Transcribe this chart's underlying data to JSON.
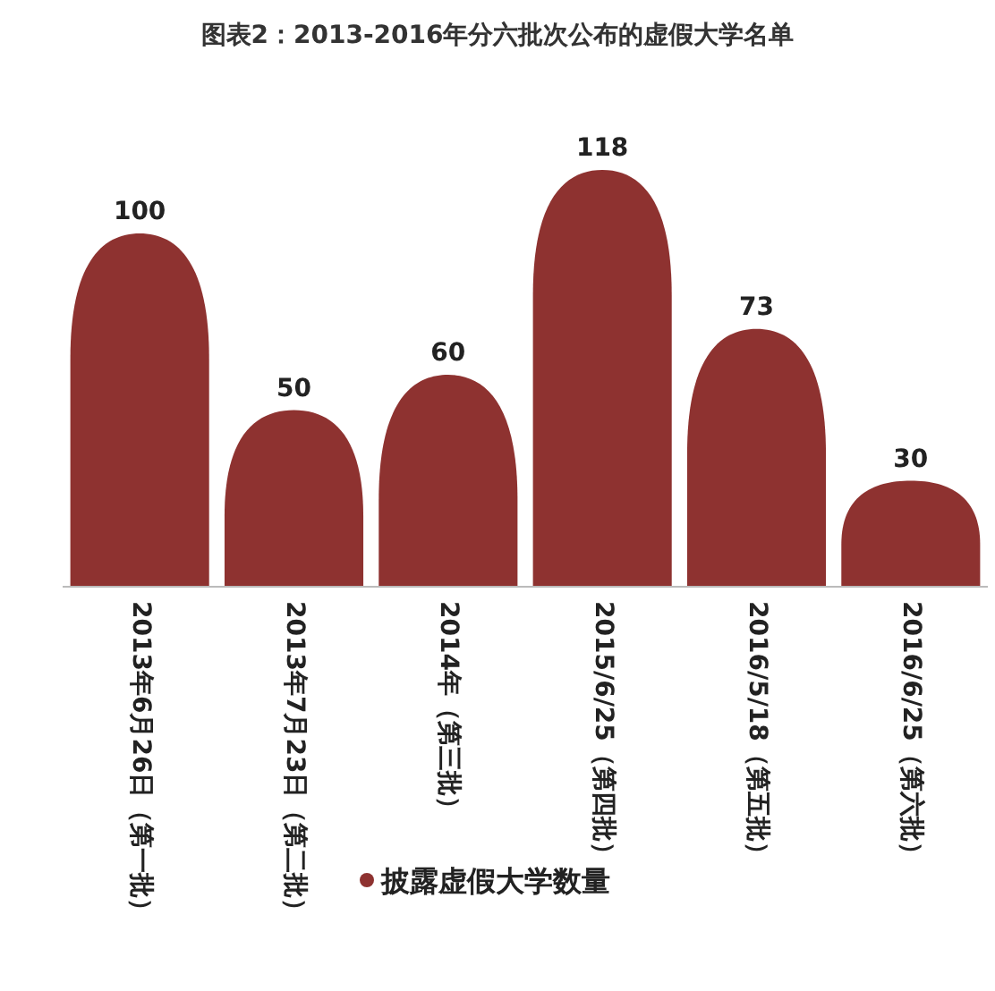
{
  "chart_data": {
    "type": "bar",
    "title": "图表2：2013-2016年分六批次公布的虚假大学名单",
    "categories": [
      "2013年6月26日（第一批）",
      "2013年7月23日（第二批）",
      "2014年（第三批）",
      "2015/6/25（第四批）",
      "2016/5/18（第五批）",
      "2016/6/25（第六批）"
    ],
    "series": [
      {
        "name": "披露虚假大学数量",
        "color": "#8e3230",
        "values": [
          100,
          50,
          60,
          118,
          73,
          30
        ]
      }
    ],
    "data_labels": true,
    "legend": "bottom"
  }
}
